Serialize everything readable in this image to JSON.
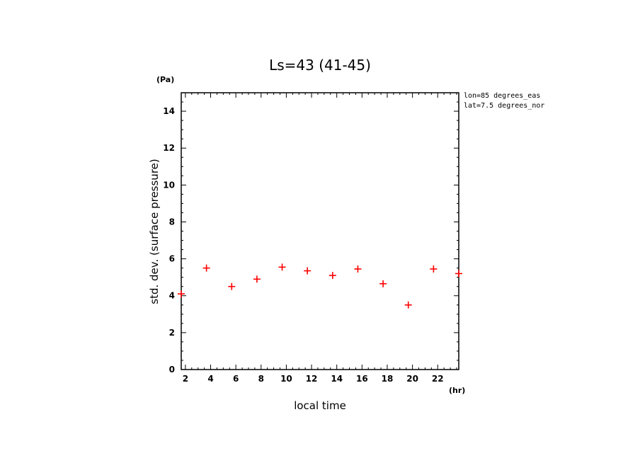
{
  "chart_data": {
    "type": "scatter",
    "title": "Ls=43 (41-45)",
    "xlabel": "local time",
    "ylabel": "std. dev. (surface pressure)",
    "x_unit": "(hr)",
    "y_unit": "(Pa)",
    "xlim": [
      1.67,
      23.67
    ],
    "ylim": [
      0,
      15
    ],
    "x_ticks": [
      2,
      4,
      6,
      8,
      10,
      12,
      14,
      16,
      18,
      20,
      22
    ],
    "y_ticks": [
      0,
      2,
      4,
      6,
      8,
      10,
      12,
      14
    ],
    "grid": false,
    "marker": "+",
    "marker_color": "#ff0000",
    "annotations": [
      "lon=85 degrees_eas",
      "lat=7.5 degrees_nor"
    ],
    "series": [
      {
        "x": [
          1.67,
          3.67,
          5.67,
          7.67,
          9.67,
          11.67,
          13.67,
          15.67,
          17.67,
          19.67,
          21.67,
          23.67
        ],
        "y": [
          4.1,
          5.5,
          4.5,
          4.9,
          5.55,
          5.35,
          5.1,
          5.45,
          4.65,
          3.5,
          5.45,
          5.2
        ]
      }
    ]
  }
}
